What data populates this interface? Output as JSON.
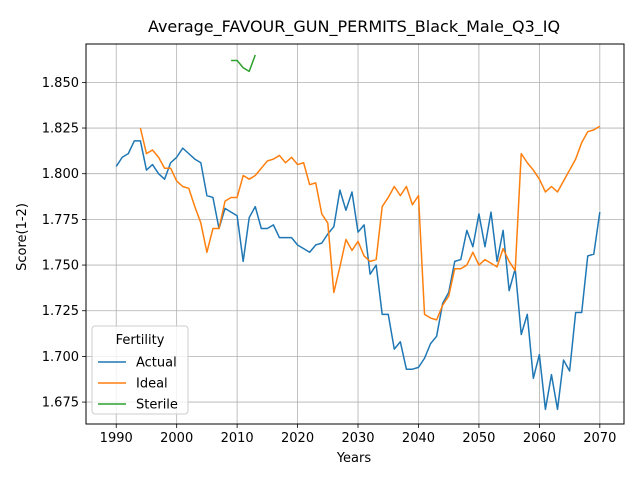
{
  "chart_data": {
    "type": "line",
    "title": "Average_FAVOUR_GUN_PERMITS_Black_Male_Q3_IQ",
    "xlabel": "Years",
    "ylabel": "Score(1-2)",
    "xlim": [
      1985,
      2074
    ],
    "ylim": [
      1.663,
      1.871
    ],
    "xticks": [
      1990,
      2000,
      2010,
      2020,
      2030,
      2040,
      2050,
      2060,
      2070
    ],
    "yticks": [
      1.675,
      1.7,
      1.725,
      1.75,
      1.775,
      1.8,
      1.825,
      1.85
    ],
    "xtick_labels": [
      "1990",
      "2000",
      "2010",
      "2020",
      "2030",
      "2040",
      "2050",
      "2060",
      "2070"
    ],
    "ytick_labels": [
      "1.675",
      "1.700",
      "1.725",
      "1.750",
      "1.775",
      "1.800",
      "1.825",
      "1.850"
    ],
    "grid": true,
    "legend": {
      "title": "Fertility",
      "placement": "lower-left"
    },
    "series": [
      {
        "name": "Actual",
        "color": "#1f77b4",
        "x": [
          1990,
          1991,
          1992,
          1993,
          1994,
          1995,
          1996,
          1997,
          1998,
          1999,
          2000,
          2001,
          2002,
          2003,
          2004,
          2005,
          2006,
          2007,
          2008,
          2009,
          2010,
          2011,
          2012,
          2013,
          2014,
          2015,
          2016,
          2017,
          2018,
          2019,
          2020,
          2021,
          2022,
          2023,
          2024,
          2025,
          2026,
          2027,
          2028,
          2029,
          2030,
          2031,
          2032,
          2033,
          2034,
          2035,
          2036,
          2037,
          2038,
          2039,
          2040,
          2041,
          2042,
          2043,
          2044,
          2045,
          2046,
          2047,
          2048,
          2049,
          2050,
          2051,
          2052,
          2053,
          2054,
          2055,
          2056,
          2057,
          2058,
          2059,
          2060,
          2061,
          2062,
          2063,
          2064,
          2065,
          2066,
          2067,
          2068,
          2069,
          2070
        ],
        "values": [
          1.804,
          1.809,
          1.811,
          1.818,
          1.818,
          1.802,
          1.805,
          1.8,
          1.797,
          1.806,
          1.809,
          1.814,
          1.811,
          1.808,
          1.806,
          1.788,
          1.787,
          1.77,
          1.781,
          1.779,
          1.777,
          1.752,
          1.776,
          1.782,
          1.77,
          1.77,
          1.772,
          1.765,
          1.765,
          1.765,
          1.761,
          1.759,
          1.757,
          1.761,
          1.762,
          1.767,
          1.771,
          1.791,
          1.78,
          1.79,
          1.768,
          1.772,
          1.745,
          1.75,
          1.723,
          1.723,
          1.704,
          1.708,
          1.693,
          1.693,
          1.694,
          1.699,
          1.707,
          1.711,
          1.729,
          1.735,
          1.752,
          1.753,
          1.769,
          1.76,
          1.778,
          1.76,
          1.779,
          1.752,
          1.769,
          1.736,
          1.748,
          1.712,
          1.723,
          1.688,
          1.701,
          1.671,
          1.69,
          1.671,
          1.698,
          1.692,
          1.724,
          1.724,
          1.755,
          1.756,
          1.779
        ]
      },
      {
        "name": "Ideal",
        "color": "#ff7f0e",
        "x": [
          1994,
          1995,
          1996,
          1997,
          1998,
          1999,
          2000,
          2001,
          2002,
          2003,
          2004,
          2005,
          2006,
          2007,
          2008,
          2009,
          2010,
          2011,
          2012,
          2013,
          2014,
          2015,
          2016,
          2017,
          2018,
          2019,
          2020,
          2021,
          2022,
          2023,
          2024,
          2025,
          2026,
          2027,
          2028,
          2029,
          2030,
          2031,
          2032,
          2033,
          2034,
          2035,
          2036,
          2037,
          2038,
          2039,
          2040,
          2041,
          2042,
          2043,
          2044,
          2045,
          2046,
          2047,
          2048,
          2049,
          2050,
          2051,
          2052,
          2053,
          2054,
          2055,
          2056,
          2057,
          2058,
          2059,
          2060,
          2061,
          2062,
          2063,
          2064,
          2065,
          2066,
          2067,
          2068,
          2069,
          2070
        ],
        "values": [
          1.825,
          1.811,
          1.813,
          1.809,
          1.803,
          1.803,
          1.796,
          1.793,
          1.792,
          1.782,
          1.773,
          1.757,
          1.77,
          1.77,
          1.785,
          1.787,
          1.787,
          1.799,
          1.797,
          1.799,
          1.803,
          1.807,
          1.808,
          1.81,
          1.806,
          1.809,
          1.805,
          1.806,
          1.794,
          1.795,
          1.778,
          1.773,
          1.735,
          1.749,
          1.764,
          1.758,
          1.763,
          1.755,
          1.752,
          1.753,
          1.782,
          1.787,
          1.793,
          1.788,
          1.793,
          1.783,
          1.788,
          1.723,
          1.721,
          1.72,
          1.728,
          1.733,
          1.748,
          1.748,
          1.75,
          1.757,
          1.75,
          1.753,
          1.751,
          1.749,
          1.759,
          1.752,
          1.747,
          1.811,
          1.806,
          1.802,
          1.797,
          1.79,
          1.793,
          1.79,
          1.796,
          1.802,
          1.808,
          1.817,
          1.823,
          1.824,
          1.826
        ]
      },
      {
        "name": "Sterile",
        "color": "#2ca02c",
        "x": [
          2009,
          2010,
          2011,
          2012,
          2013
        ],
        "values": [
          1.862,
          1.862,
          1.858,
          1.856,
          1.865
        ]
      }
    ]
  }
}
